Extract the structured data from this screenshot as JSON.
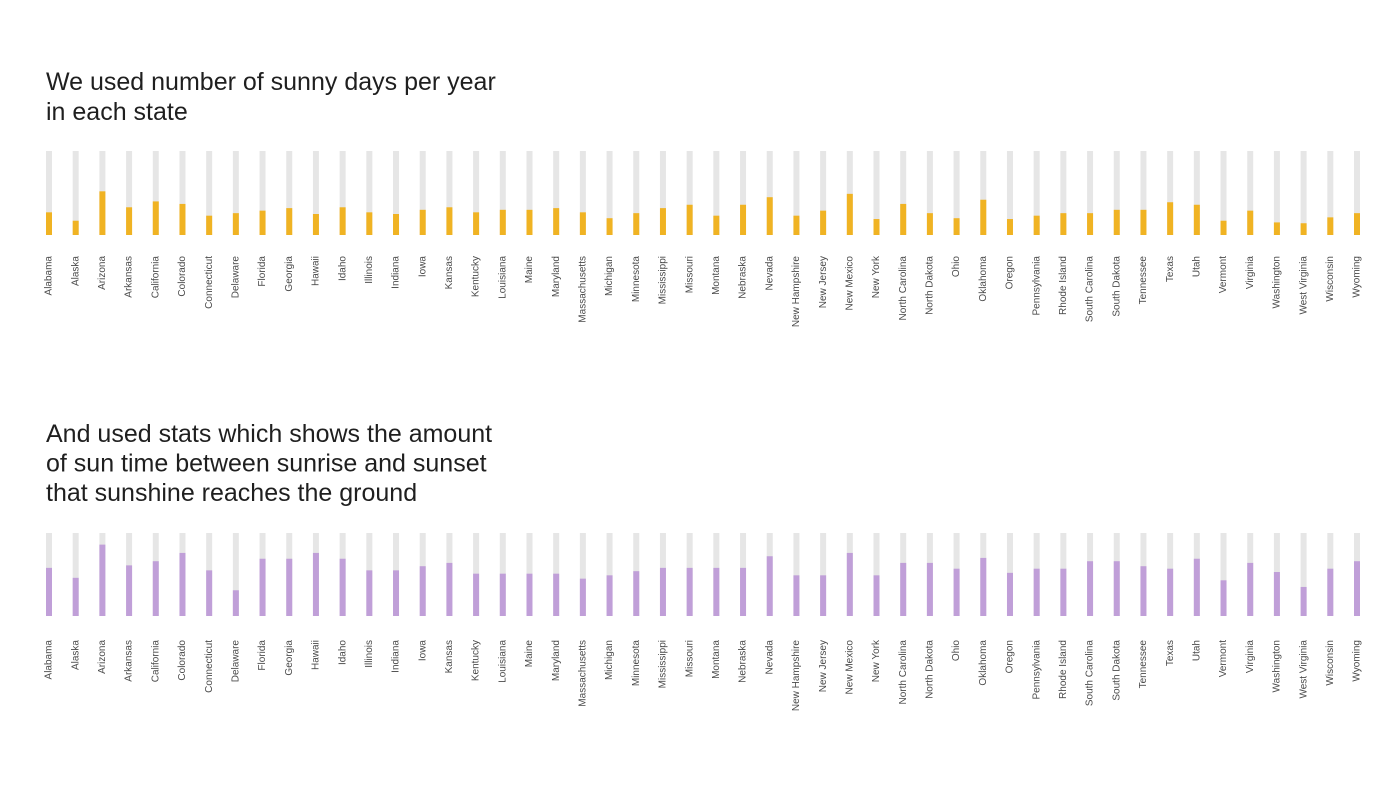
{
  "chart_data": [
    {
      "type": "bar",
      "title": [
        "We used number of sunny days per year",
        "in each state"
      ],
      "categories": [
        "Alabama",
        "Alaska",
        "Arizona",
        "Arkansas",
        "California",
        "Colorado",
        "Connecticut",
        "Delaware",
        "Florida",
        "Georgia",
        "Hawaii",
        "Idaho",
        "Illinois",
        "Indiana",
        "Iowa",
        "Kansas",
        "Kentucky",
        "Louisiana",
        "Maine",
        "Maryland",
        "Massachusetts",
        "Michigan",
        "Minnesota",
        "Mississippi",
        "Missouri",
        "Montana",
        "Nebraska",
        "Nevada",
        "New Hampshire",
        "New Jersey",
        "New Mexico",
        "New York",
        "North Carolina",
        "North Dakota",
        "Ohio",
        "Oklahoma",
        "Oregon",
        "Pennsylvania",
        "Rhode Island",
        "South Carolina",
        "South Dakota",
        "Tennessee",
        "Texas",
        "Utah",
        "Vermont",
        "Virginia",
        "Washington",
        "West Virginia",
        "Wisconsin",
        "Wyoming"
      ],
      "values": [
        27,
        17,
        52,
        33,
        40,
        37,
        23,
        26,
        29,
        32,
        25,
        33,
        27,
        25,
        30,
        33,
        27,
        30,
        30,
        32,
        27,
        20,
        26,
        32,
        36,
        23,
        36,
        45,
        23,
        29,
        49,
        19,
        37,
        26,
        20,
        42,
        19,
        23,
        26,
        26,
        30,
        30,
        39,
        36,
        17,
        29,
        15,
        14,
        21,
        26
      ],
      "ylim": [
        0,
        100
      ],
      "color": "#f0b323",
      "track_color": "#e6e6e6"
    },
    {
      "type": "bar",
      "title": [
        "And used stats which shows the amount",
        "of sun time between sunrise and sunset",
        "that sunshine reaches the ground"
      ],
      "categories": [
        "Alabama",
        "Alaska",
        "Arizona",
        "Arkansas",
        "California",
        "Colorado",
        "Connecticut",
        "Delaware",
        "Florida",
        "Georgia",
        "Hawaii",
        "Idaho",
        "Illinois",
        "Indiana",
        "Iowa",
        "Kansas",
        "Kentucky",
        "Louisiana",
        "Maine",
        "Maryland",
        "Massachusetts",
        "Michigan",
        "Minnesota",
        "Mississippi",
        "Missouri",
        "Montana",
        "Nebraska",
        "Nevada",
        "New Hampshire",
        "New Jersey",
        "New Mexico",
        "New York",
        "North Carolina",
        "North Dakota",
        "Ohio",
        "Oklahoma",
        "Oregon",
        "Pennsylvania",
        "Rhode Island",
        "South Carolina",
        "South Dakota",
        "Tennessee",
        "Texas",
        "Utah",
        "Vermont",
        "Virginia",
        "Washington",
        "West Virginia",
        "Wisconsin",
        "Wyoming"
      ],
      "values": [
        58,
        46,
        86,
        61,
        66,
        76,
        55,
        31,
        69,
        69,
        76,
        69,
        55,
        55,
        60,
        64,
        51,
        51,
        51,
        51,
        45,
        49,
        54,
        58,
        58,
        58,
        58,
        72,
        49,
        49,
        76,
        49,
        64,
        64,
        57,
        70,
        52,
        57,
        57,
        66,
        66,
        60,
        57,
        69,
        43,
        64,
        53,
        35,
        57,
        66
      ],
      "ylim": [
        0,
        100
      ],
      "color": "#c09fd8",
      "track_color": "#e6e6e6"
    }
  ]
}
